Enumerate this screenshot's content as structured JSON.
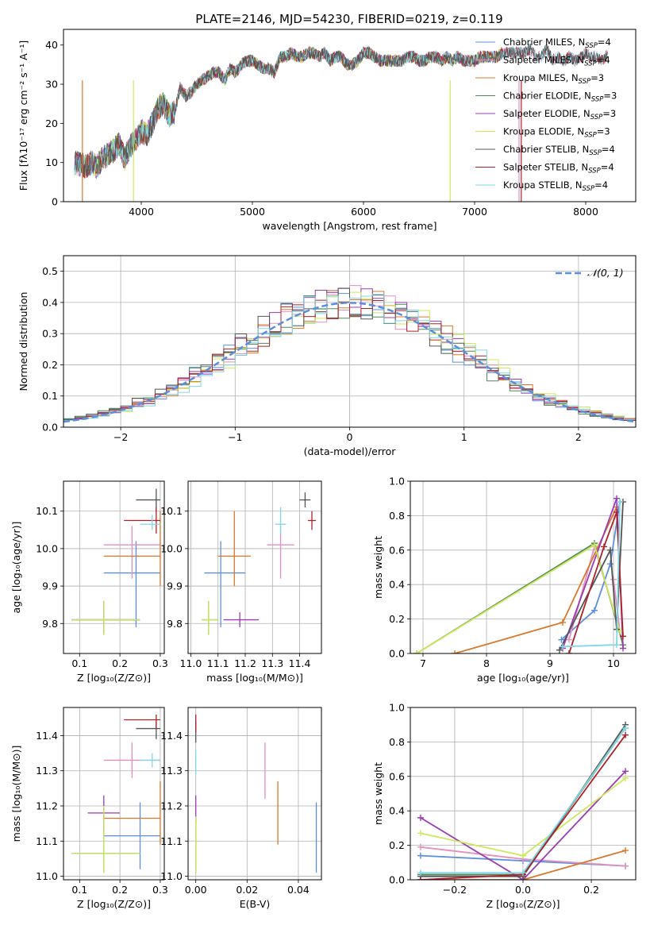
{
  "figure": {
    "title": "PLATE=2146, MJD=54230, FIBERID=0219, z=0.119"
  },
  "models": [
    {
      "name": "Chabrier MILES",
      "nssp": "4",
      "color": "#5b8fde"
    },
    {
      "name": "Salpeter MILES",
      "nssp": "4",
      "color": "#e58fbf"
    },
    {
      "name": "Kroupa MILES",
      "nssp": "3",
      "color": "#d9782a"
    },
    {
      "name": "Chabrier ELODIE",
      "nssp": "3",
      "color": "#4f8a5a"
    },
    {
      "name": "Salpeter ELODIE",
      "nssp": "3",
      "color": "#9b3bb5"
    },
    {
      "name": "Kroupa ELODIE",
      "nssp": "3",
      "color": "#cde95a"
    },
    {
      "name": "Chabrier STELIB",
      "nssp": "4",
      "color": "#555555"
    },
    {
      "name": "Salpeter STELIB",
      "nssp": "4",
      "color": "#b0202a"
    },
    {
      "name": "Kroupa STELIB",
      "nssp": "4",
      "color": "#7fd8e6"
    }
  ],
  "chart_data": [
    {
      "id": "spectrum",
      "type": "line",
      "xlabel": "wavelength [Angstrom, rest frame]",
      "ylabel": "Flux [fλ10⁻¹⁷ erg cm⁻² s⁻¹ A⁻¹]",
      "xlim": [
        3300,
        8450
      ],
      "ylim": [
        0,
        44
      ],
      "xticks": [
        4000,
        5000,
        6000,
        7000,
        8000
      ],
      "yticks": [
        0,
        10,
        20,
        30,
        40
      ],
      "grid": false,
      "legend": "top-right",
      "x": [
        3400,
        3450,
        3500,
        3550,
        3600,
        3650,
        3700,
        3750,
        3800,
        3850,
        3900,
        3950,
        4000,
        4050,
        4100,
        4150,
        4200,
        4250,
        4300,
        4350,
        4400,
        4450,
        4500,
        4550,
        4600,
        4650,
        4700,
        4750,
        4800,
        4850,
        4900,
        4950,
        5000,
        5050,
        5100,
        5150,
        5200,
        5250,
        5300,
        5350,
        5400,
        5450,
        5500,
        5550,
        5600,
        5650,
        5700,
        5750,
        5800,
        5850,
        5900,
        5950,
        6000,
        6050,
        6100,
        6150,
        6200,
        6250,
        6300,
        6350,
        6400,
        6450,
        6500,
        6550,
        6600,
        6650,
        6700,
        6750,
        6800,
        6850,
        6900,
        6950,
        7000,
        7050,
        7100,
        7150,
        7200,
        7250,
        7300,
        7350,
        7400,
        7450,
        7500,
        7550,
        7600,
        7650,
        7700,
        7750,
        7800,
        7850,
        7900,
        7950,
        8000,
        8050,
        8100,
        8150,
        8200
      ],
      "y": [
        10,
        9.5,
        9,
        10,
        9,
        11,
        12,
        13,
        15,
        11,
        14,
        16,
        18,
        17,
        20,
        24,
        25,
        22,
        23,
        29,
        27,
        28,
        30,
        31,
        32,
        33,
        33,
        31,
        34,
        33,
        35,
        36,
        36,
        35,
        34,
        34,
        33,
        37,
        37,
        38,
        37,
        37,
        38,
        38,
        37,
        38,
        36,
        37,
        37,
        35,
        35,
        36,
        38,
        38,
        37,
        36,
        36,
        36,
        36,
        36,
        37,
        37,
        36,
        36,
        37,
        37,
        36,
        37,
        36,
        37,
        36,
        36,
        36,
        37,
        37,
        37,
        37,
        38,
        38,
        38,
        38,
        38,
        39,
        37,
        37,
        39,
        36,
        37,
        36,
        37,
        36,
        37,
        38,
        37,
        37,
        36,
        38
      ]
    },
    {
      "id": "residuals",
      "type": "line",
      "xlabel": "(data-model)/error",
      "ylabel": "Normed distribution",
      "xlim": [
        -2.5,
        2.5
      ],
      "ylim": [
        0,
        0.55
      ],
      "xticks": [
        -2,
        -1,
        0,
        1,
        2
      ],
      "yticks": [
        0.0,
        0.1,
        0.2,
        0.3,
        0.4,
        0.5
      ],
      "grid": true,
      "legend": "top-right",
      "legend_label": "𝒩(0, 1)",
      "bins": [
        -2.5,
        -2.4,
        -2.3,
        -2.2,
        -2.1,
        -2.0,
        -1.9,
        -1.8,
        -1.7,
        -1.6,
        -1.5,
        -1.4,
        -1.3,
        -1.2,
        -1.1,
        -1.0,
        -0.9,
        -0.8,
        -0.7,
        -0.6,
        -0.5,
        -0.4,
        -0.3,
        -0.2,
        -0.1,
        0.0,
        0.1,
        0.2,
        0.3,
        0.4,
        0.5,
        0.6,
        0.7,
        0.8,
        0.9,
        1.0,
        1.1,
        1.2,
        1.3,
        1.4,
        1.5,
        1.6,
        1.7,
        1.8,
        1.9,
        2.0,
        2.1,
        2.2,
        2.3,
        2.4,
        2.5
      ]
    },
    {
      "id": "age_vs_Z",
      "type": "scatter",
      "xlabel": "Z [log₁₀(Z/Z⊙)]",
      "ylabel": "age  [log₁₀(age/yr)]",
      "xlim": [
        0.06,
        0.31
      ],
      "ylim": [
        9.72,
        10.18
      ],
      "xticks": [
        0.1,
        0.2,
        0.3
      ],
      "yticks": [
        9.8,
        9.9,
        10.0,
        10.1
      ],
      "grid": true,
      "points": [
        {
          "x": 0.24,
          "y": 9.935,
          "xerr": [
            0.16,
            0.3
          ],
          "yerr": [
            9.79,
            10.02
          ]
        },
        {
          "x": 0.23,
          "y": 10.01,
          "xerr": [
            0.16,
            0.3
          ],
          "yerr": [
            9.92,
            10.06
          ]
        },
        {
          "x": 0.3,
          "y": 9.98,
          "xerr": [
            0.16,
            0.3
          ],
          "yerr": [
            9.9,
            10.1
          ]
        },
        {
          "x": 0.16,
          "y": 9.81,
          "xerr": [
            0.08,
            0.25
          ],
          "yerr": [
            9.77,
            9.86
          ]
        },
        {
          "x": 0.16,
          "y": 9.81,
          "xerr": [
            0.08,
            0.25
          ],
          "yerr": [
            9.77,
            9.86
          ]
        },
        {
          "x": 0.16,
          "y": 9.81,
          "xerr": [
            0.08,
            0.25
          ],
          "yerr": [
            9.77,
            9.86
          ]
        },
        {
          "x": 0.29,
          "y": 10.13,
          "xerr": [
            0.24,
            0.3
          ],
          "yerr": [
            10.1,
            10.16
          ]
        },
        {
          "x": 0.29,
          "y": 10.075,
          "xerr": [
            0.21,
            0.3
          ],
          "yerr": [
            10.04,
            10.11
          ]
        },
        {
          "x": 0.28,
          "y": 10.065,
          "xerr": [
            0.25,
            0.3
          ],
          "yerr": [
            10.05,
            10.09
          ]
        }
      ]
    },
    {
      "id": "age_vs_mass",
      "type": "scatter",
      "xlabel": "mass [log₁₀(M/M⊙)]",
      "ylabel": "",
      "xlim": [
        10.99,
        11.48
      ],
      "ylim": [
        9.72,
        10.18
      ],
      "xticks": [
        11.0,
        11.1,
        11.2,
        11.3,
        11.4
      ],
      "yticks": [
        9.8,
        9.9,
        10.0,
        10.1
      ],
      "grid": true,
      "points": [
        {
          "x": 11.11,
          "y": 9.935,
          "xerr": [
            11.05,
            11.2
          ],
          "yerr": [
            9.79,
            10.02
          ]
        },
        {
          "x": 11.33,
          "y": 10.01,
          "xerr": [
            11.28,
            11.38
          ],
          "yerr": [
            9.92,
            10.06
          ]
        },
        {
          "x": 11.16,
          "y": 9.98,
          "xerr": [
            11.1,
            11.22
          ],
          "yerr": [
            9.9,
            10.1
          ]
        },
        {
          "x": 11.065,
          "y": 9.81,
          "xerr": [
            11.04,
            11.1
          ],
          "yerr": [
            9.77,
            9.86
          ]
        },
        {
          "x": 11.18,
          "y": 9.81,
          "xerr": [
            11.12,
            11.25
          ],
          "yerr": [
            9.79,
            9.83
          ]
        },
        {
          "x": 11.065,
          "y": 9.81,
          "xerr": [
            11.04,
            11.1
          ],
          "yerr": [
            9.77,
            9.86
          ]
        },
        {
          "x": 11.42,
          "y": 10.13,
          "xerr": [
            11.4,
            11.44
          ],
          "yerr": [
            10.11,
            10.15
          ]
        },
        {
          "x": 11.445,
          "y": 10.075,
          "xerr": [
            11.43,
            11.46
          ],
          "yerr": [
            10.05,
            10.1
          ]
        },
        {
          "x": 11.33,
          "y": 10.065,
          "xerr": [
            11.31,
            11.35
          ],
          "yerr": [
            10.04,
            10.11
          ]
        }
      ]
    },
    {
      "id": "mass_weight_vs_age",
      "type": "line",
      "xlabel": "age  [log₁₀(age/yr)]",
      "ylabel": "mass weight",
      "xlim": [
        6.8,
        10.35
      ],
      "ylim": [
        0,
        1
      ],
      "xticks": [
        7,
        8,
        9,
        10
      ],
      "yticks": [
        0.0,
        0.2,
        0.4,
        0.6,
        0.8,
        1.0
      ],
      "grid": true,
      "series": [
        {
          "x": [
            9.18,
            9.7,
            9.95,
            10.1
          ],
          "y": [
            0.08,
            0.25,
            0.52,
            0.88
          ]
        },
        {
          "x": [
            9.3,
            9.7,
            10.1,
            10.0
          ],
          "y": [
            0.08,
            0.62,
            0.13,
            0.43
          ]
        },
        {
          "x": [
            7.5,
            9.2,
            10.05
          ],
          "y": [
            0.0,
            0.18,
            0.85
          ]
        },
        {
          "x": [
            6.9,
            9.7,
            10.15
          ],
          "y": [
            0.0,
            0.64,
            0.05
          ]
        },
        {
          "x": [
            9.2,
            10.05,
            10.15
          ],
          "y": [
            0.03,
            0.9,
            0.03
          ]
        },
        {
          "x": [
            6.9,
            9.7,
            10.1
          ],
          "y": [
            0.0,
            0.63,
            0.13
          ]
        },
        {
          "x": [
            9.15,
            9.95,
            10.05,
            10.15
          ],
          "y": [
            0.02,
            0.6,
            0.14,
            0.88
          ]
        },
        {
          "x": [
            9.3,
            9.85,
            10.05,
            10.15
          ],
          "y": [
            0.0,
            0.62,
            0.82,
            0.1
          ]
        },
        {
          "x": [
            9.2,
            10.05,
            10.1
          ],
          "y": [
            0.04,
            0.05,
            0.88
          ]
        }
      ]
    },
    {
      "id": "mass_vs_Z",
      "type": "scatter",
      "xlabel": "Z [log₁₀(Z/Z⊙)]",
      "ylabel": "mass [log₁₀(M/M⊙)]",
      "xlim": [
        0.06,
        0.31
      ],
      "ylim": [
        10.99,
        11.48
      ],
      "xticks": [
        0.1,
        0.2,
        0.3
      ],
      "yticks": [
        11.0,
        11.1,
        11.2,
        11.3,
        11.4
      ],
      "grid": true,
      "points": [
        {
          "x": 0.25,
          "y": 11.115,
          "xerr": [
            0.16,
            0.3
          ],
          "yerr": [
            11.02,
            11.21
          ]
        },
        {
          "x": 0.23,
          "y": 11.33,
          "xerr": [
            0.16,
            0.3
          ],
          "yerr": [
            11.28,
            11.38
          ]
        },
        {
          "x": 0.3,
          "y": 11.165,
          "xerr": [
            0.16,
            0.3
          ],
          "yerr": [
            11.09,
            11.27
          ]
        },
        {
          "x": 0.16,
          "y": 11.065,
          "xerr": [
            0.08,
            0.25
          ],
          "yerr": [
            11.01,
            11.2
          ]
        },
        {
          "x": 0.16,
          "y": 11.18,
          "xerr": [
            0.12,
            0.2
          ],
          "yerr": [
            11.12,
            11.23
          ]
        },
        {
          "x": 0.16,
          "y": 11.065,
          "xerr": [
            0.08,
            0.25
          ],
          "yerr": [
            11.01,
            11.2
          ]
        },
        {
          "x": 0.29,
          "y": 11.42,
          "xerr": [
            0.24,
            0.3
          ],
          "yerr": [
            11.39,
            11.44
          ]
        },
        {
          "x": 0.29,
          "y": 11.445,
          "xerr": [
            0.21,
            0.3
          ],
          "yerr": [
            11.42,
            11.46
          ]
        },
        {
          "x": 0.28,
          "y": 11.33,
          "xerr": [
            0.25,
            0.3
          ],
          "yerr": [
            11.31,
            11.35
          ]
        }
      ]
    },
    {
      "id": "mass_vs_ebv",
      "type": "scatter",
      "xlabel": "E(B-V)",
      "ylabel": "",
      "xlim": [
        -0.003,
        0.049
      ],
      "ylim": [
        10.99,
        11.48
      ],
      "xticks": [
        0.0,
        0.02,
        0.04
      ],
      "yticks": [
        11.0,
        11.1,
        11.2,
        11.3,
        11.4
      ],
      "grid": true,
      "points": [
        {
          "x": 0.047,
          "yerr": [
            11.01,
            11.21
          ]
        },
        {
          "x": 0.027,
          "yerr": [
            11.22,
            11.38
          ]
        },
        {
          "x": 0.032,
          "yerr": [
            11.09,
            11.27
          ]
        },
        {
          "x": 0.0,
          "yerr": [
            11.01,
            11.17
          ]
        },
        {
          "x": 0.0,
          "yerr": [
            11.15,
            11.23
          ]
        },
        {
          "x": 0.0,
          "yerr": [
            11.01,
            11.17
          ]
        },
        {
          "x": 0.0,
          "yerr": [
            11.38,
            11.44
          ]
        },
        {
          "x": 0.0,
          "yerr": [
            11.41,
            11.46
          ]
        },
        {
          "x": 0.0,
          "yerr": [
            11.29,
            11.36
          ]
        }
      ]
    },
    {
      "id": "mass_weight_vs_Z",
      "type": "line",
      "xlabel": "Z [log₁₀(Z/Z⊙)]",
      "ylabel": "mass weight",
      "xlim": [
        -0.33,
        0.33
      ],
      "ylim": [
        0,
        1
      ],
      "xticks": [
        -0.2,
        0.0,
        0.2
      ],
      "yticks": [
        0.0,
        0.2,
        0.4,
        0.6,
        0.8,
        1.0
      ],
      "grid": true,
      "series": [
        {
          "x": [
            -0.3,
            0.0,
            0.3
          ],
          "y": [
            0.14,
            0.11,
            0.08
          ]
        },
        {
          "x": [
            -0.3,
            0.0,
            0.3
          ],
          "y": [
            0.19,
            0.12,
            0.08
          ]
        },
        {
          "x": [
            -0.3,
            0.0,
            0.3
          ],
          "y": [
            0.0,
            0.0,
            0.17
          ]
        },
        {
          "x": [
            -0.3,
            0.0,
            0.3
          ],
          "y": [
            0.03,
            0.03,
            0.88
          ]
        },
        {
          "x": [
            -0.3,
            0.0,
            0.3
          ],
          "y": [
            0.36,
            0.0,
            0.63
          ]
        },
        {
          "x": [
            -0.3,
            0.0,
            0.3
          ],
          "y": [
            0.27,
            0.14,
            0.59
          ]
        },
        {
          "x": [
            -0.3,
            0.0,
            0.3
          ],
          "y": [
            0.02,
            0.02,
            0.9
          ]
        },
        {
          "x": [
            -0.3,
            0.0,
            0.3
          ],
          "y": [
            0.0,
            0.03,
            0.84
          ]
        },
        {
          "x": [
            -0.3,
            0.0,
            0.3
          ],
          "y": [
            0.04,
            0.04,
            0.88
          ]
        }
      ]
    }
  ]
}
